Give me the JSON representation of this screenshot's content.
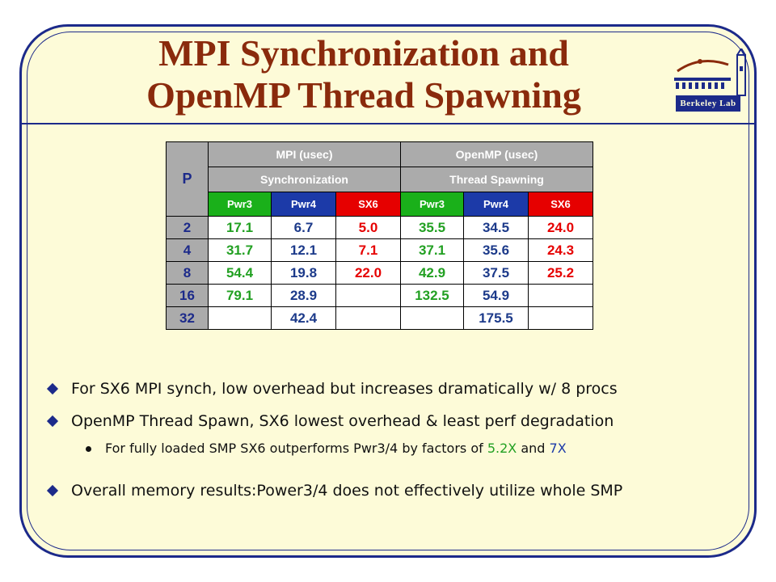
{
  "title": {
    "line1": "MPI Synchronization and",
    "line2": "OpenMP Thread Spawning"
  },
  "logo": {
    "text": "Berkeley Lab",
    "icon": "berkeley-lab-logo-icon"
  },
  "table": {
    "p_header": "P",
    "mpi_header": "MPI (usec)",
    "openmp_header": "OpenMP (usec)",
    "mpi_sub": "Synchronization",
    "openmp_sub": "Thread Spawning",
    "columns": [
      "Pwr3",
      "Pwr4",
      "SX6",
      "Pwr3",
      "Pwr4",
      "SX6"
    ],
    "rows": [
      {
        "p": "2",
        "mpi_pwr3": "17.1",
        "mpi_pwr4": "6.7",
        "mpi_sx6": "5.0",
        "omp_pwr3": "35.5",
        "omp_pwr4": "34.5",
        "omp_sx6": "24.0"
      },
      {
        "p": "4",
        "mpi_pwr3": "31.7",
        "mpi_pwr4": "12.1",
        "mpi_sx6": "7.1",
        "omp_pwr3": "37.1",
        "omp_pwr4": "35.6",
        "omp_sx6": "24.3"
      },
      {
        "p": "8",
        "mpi_pwr3": "54.4",
        "mpi_pwr4": "19.8",
        "mpi_sx6": "22.0",
        "omp_pwr3": "42.9",
        "omp_pwr4": "37.5",
        "omp_sx6": "25.2"
      },
      {
        "p": "16",
        "mpi_pwr3": "79.1",
        "mpi_pwr4": "28.9",
        "mpi_sx6": "",
        "omp_pwr3": "132.5",
        "omp_pwr4": "54.9",
        "omp_sx6": ""
      },
      {
        "p": "32",
        "mpi_pwr3": "",
        "mpi_pwr4": "42.4",
        "mpi_sx6": "",
        "omp_pwr3": "",
        "omp_pwr4": "175.5",
        "omp_sx6": ""
      }
    ]
  },
  "bullets": {
    "b1": "For SX6 MPI synch, low overhead but increases dramatically w/ 8 procs",
    "b2": "OpenMP Thread Spawn, SX6 lowest overhead & least perf  degradation",
    "b2_sub_prefix": "For fully loaded SMP SX6 outperforms Pwr3/4 by factors of ",
    "b2_sub_factor1": "5.2X",
    "b2_sub_mid": " and ",
    "b2_sub_factor2": "7X",
    "b3": "Overall memory results:Power3/4 does not effectively utilize whole SMP"
  },
  "colors": {
    "title": "#8a2a0c",
    "frame": "#1c2a8a",
    "background": "#fdfbd8",
    "pwr3": "#22a022",
    "pwr4": "#1c3a8a",
    "sx6": "#e60000",
    "header_gray": "#ababab"
  }
}
